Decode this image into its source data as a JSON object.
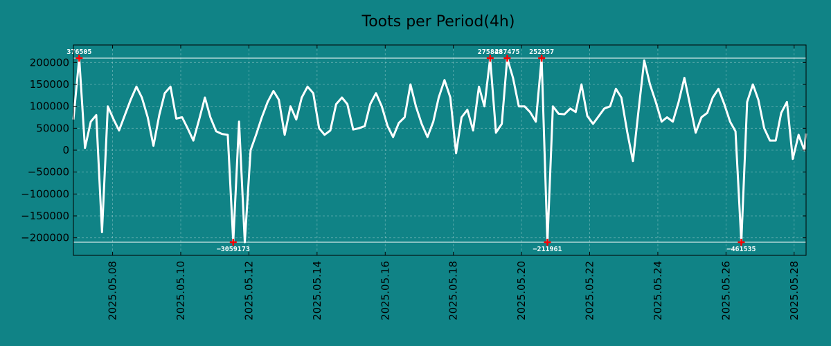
{
  "chart_data": {
    "type": "line",
    "title": "Toots per Period(4h)",
    "xlabel": "",
    "ylabel": "",
    "ylim": [
      -240000,
      240000
    ],
    "x_range_days": [
      6.85,
      28.35
    ],
    "yticks": [
      200000,
      150000,
      100000,
      50000,
      0,
      -50000,
      -100000,
      -150000,
      -200000
    ],
    "ytick_labels": [
      "200000",
      "150000",
      "100000",
      "50000",
      "0",
      "−50000",
      "−100000",
      "−150000",
      "−200000"
    ],
    "xtick_days": [
      8,
      10,
      12,
      14,
      16,
      18,
      20,
      22,
      24,
      26,
      28
    ],
    "xtick_labels": [
      "2025.05.08",
      "2025.05.10",
      "2025.05.12",
      "2025.05.14",
      "2025.05.16",
      "2025.05.18",
      "2025.05.20",
      "2025.05.22",
      "2025.05.24",
      "2025.05.26",
      "2025.05.28"
    ],
    "clip_lines": [
      210000,
      -210000
    ],
    "series": [
      {
        "name": "toots",
        "color": "#ffffff",
        "points": [
          [
            6.85,
            70000
          ],
          [
            7.02,
            210000
          ],
          [
            7.19,
            5000
          ],
          [
            7.36,
            65000
          ],
          [
            7.52,
            80000
          ],
          [
            7.69,
            -187000
          ],
          [
            7.86,
            100000
          ],
          [
            8.03,
            70000
          ],
          [
            8.19,
            45000
          ],
          [
            8.36,
            80000
          ],
          [
            8.53,
            115000
          ],
          [
            8.7,
            145000
          ],
          [
            8.86,
            120000
          ],
          [
            9.03,
            75000
          ],
          [
            9.2,
            10000
          ],
          [
            9.37,
            80000
          ],
          [
            9.53,
            130000
          ],
          [
            9.7,
            145000
          ],
          [
            9.87,
            72000
          ],
          [
            10.04,
            75000
          ],
          [
            10.2,
            50000
          ],
          [
            10.37,
            22000
          ],
          [
            10.54,
            70000
          ],
          [
            10.71,
            120000
          ],
          [
            10.87,
            75000
          ],
          [
            11.04,
            43000
          ],
          [
            11.21,
            37000
          ],
          [
            11.38,
            35000
          ],
          [
            11.54,
            -210000
          ],
          [
            11.71,
            65000
          ],
          [
            11.88,
            -210000
          ],
          [
            12.05,
            0
          ],
          [
            12.21,
            35000
          ],
          [
            12.38,
            75000
          ],
          [
            12.55,
            110000
          ],
          [
            12.72,
            135000
          ],
          [
            12.88,
            115000
          ],
          [
            13.05,
            35000
          ],
          [
            13.22,
            100000
          ],
          [
            13.39,
            70000
          ],
          [
            13.55,
            120000
          ],
          [
            13.72,
            145000
          ],
          [
            13.89,
            130000
          ],
          [
            14.06,
            50000
          ],
          [
            14.22,
            35000
          ],
          [
            14.39,
            45000
          ],
          [
            14.56,
            105000
          ],
          [
            14.73,
            120000
          ],
          [
            14.89,
            105000
          ],
          [
            15.06,
            47000
          ],
          [
            15.23,
            50000
          ],
          [
            15.4,
            55000
          ],
          [
            15.56,
            105000
          ],
          [
            15.73,
            130000
          ],
          [
            15.9,
            100000
          ],
          [
            16.07,
            55000
          ],
          [
            16.23,
            30000
          ],
          [
            16.4,
            62000
          ],
          [
            16.57,
            75000
          ],
          [
            16.74,
            150000
          ],
          [
            16.9,
            100000
          ],
          [
            17.07,
            60000
          ],
          [
            17.24,
            30000
          ],
          [
            17.41,
            65000
          ],
          [
            17.57,
            120000
          ],
          [
            17.74,
            160000
          ],
          [
            17.91,
            120000
          ],
          [
            18.08,
            -7000
          ],
          [
            18.24,
            75000
          ],
          [
            18.41,
            92000
          ],
          [
            18.58,
            45000
          ],
          [
            18.75,
            145000
          ],
          [
            18.91,
            100000
          ],
          [
            19.08,
            210000
          ],
          [
            19.25,
            40000
          ],
          [
            19.42,
            60000
          ],
          [
            19.58,
            210000
          ],
          [
            19.75,
            165000
          ],
          [
            19.92,
            100000
          ],
          [
            20.09,
            100000
          ],
          [
            20.25,
            87000
          ],
          [
            20.42,
            65000
          ],
          [
            20.59,
            210000
          ],
          [
            20.76,
            -210000
          ],
          [
            20.92,
            100000
          ],
          [
            21.09,
            83000
          ],
          [
            21.26,
            82000
          ],
          [
            21.43,
            95000
          ],
          [
            21.59,
            87000
          ],
          [
            21.76,
            150000
          ],
          [
            21.93,
            78000
          ],
          [
            22.1,
            60000
          ],
          [
            22.26,
            77000
          ],
          [
            22.43,
            95000
          ],
          [
            22.6,
            100000
          ],
          [
            22.77,
            140000
          ],
          [
            22.93,
            120000
          ],
          [
            23.1,
            42000
          ],
          [
            23.27,
            -25000
          ],
          [
            23.44,
            95000
          ],
          [
            23.6,
            205000
          ],
          [
            23.77,
            150000
          ],
          [
            23.94,
            110000
          ],
          [
            24.11,
            65000
          ],
          [
            24.27,
            75000
          ],
          [
            24.44,
            65000
          ],
          [
            24.61,
            110000
          ],
          [
            24.78,
            165000
          ],
          [
            24.94,
            105000
          ],
          [
            25.11,
            40000
          ],
          [
            25.28,
            75000
          ],
          [
            25.45,
            85000
          ],
          [
            25.61,
            120000
          ],
          [
            25.78,
            140000
          ],
          [
            25.95,
            105000
          ],
          [
            26.12,
            65000
          ],
          [
            26.28,
            43000
          ],
          [
            26.45,
            -210000
          ],
          [
            26.62,
            110000
          ],
          [
            26.79,
            150000
          ],
          [
            26.95,
            115000
          ],
          [
            27.12,
            50000
          ],
          [
            27.29,
            22000
          ],
          [
            27.46,
            22000
          ],
          [
            27.62,
            85000
          ],
          [
            27.79,
            110000
          ],
          [
            27.96,
            -20000
          ],
          [
            28.13,
            35000
          ],
          [
            28.3,
            0
          ],
          [
            28.35,
            38000
          ]
        ]
      }
    ],
    "annotations": [
      {
        "x": 7.02,
        "y": 210000,
        "label": "376505",
        "pos": "above"
      },
      {
        "x": 19.08,
        "y": 210000,
        "label": "275848",
        "pos": "above"
      },
      {
        "x": 19.58,
        "y": 210000,
        "label": "287475",
        "pos": "above"
      },
      {
        "x": 20.59,
        "y": 210000,
        "label": "252357",
        "pos": "above"
      },
      {
        "x": 11.54,
        "y": -210000,
        "label": "−3059173",
        "pos": "below"
      },
      {
        "x": 20.76,
        "y": -210000,
        "label": "−211961",
        "pos": "below"
      },
      {
        "x": 26.45,
        "y": -210000,
        "label": "−461535",
        "pos": "below"
      }
    ]
  }
}
